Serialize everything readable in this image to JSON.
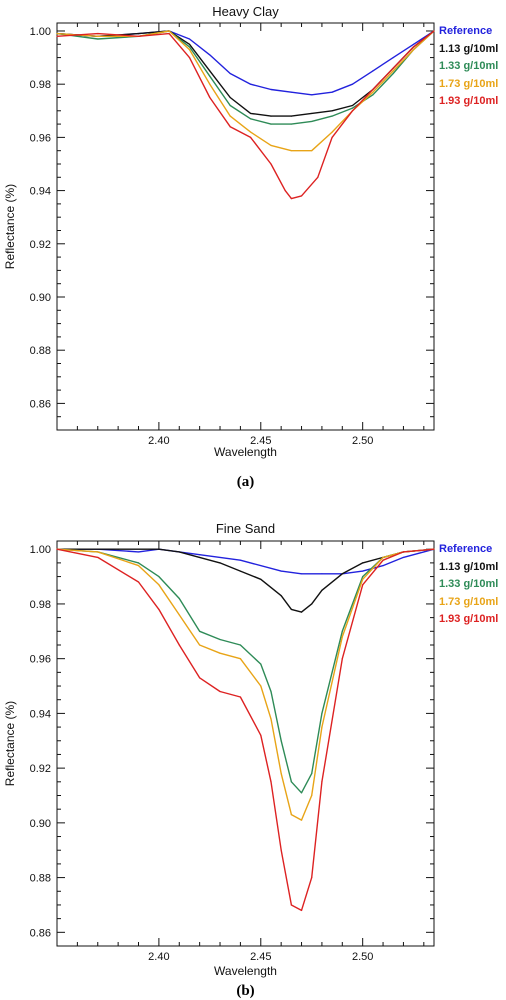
{
  "chart_data": [
    {
      "type": "line",
      "title": "Heavy Clay",
      "xlabel": "Wavelength",
      "ylabel": "Reflectance (%)",
      "caption": "(a)",
      "xlim": [
        2.35,
        2.535
      ],
      "ylim": [
        0.85,
        1.003
      ],
      "xticks": [
        "2.40",
        "2.45",
        "2.50"
      ],
      "yticks": [
        "0.86",
        "0.88",
        "0.90",
        "0.92",
        "0.94",
        "0.96",
        "0.98",
        "1.00"
      ],
      "legend_position": "right",
      "series": [
        {
          "name": "Reference",
          "color": "#2222dd",
          "x": [
            2.35,
            2.37,
            2.39,
            2.405,
            2.415,
            2.425,
            2.435,
            2.445,
            2.455,
            2.465,
            2.475,
            2.485,
            2.495,
            2.505,
            2.515,
            2.525,
            2.535
          ],
          "y": [
            0.999,
            0.998,
            0.999,
            1.0,
            0.997,
            0.991,
            0.984,
            0.98,
            0.978,
            0.977,
            0.976,
            0.977,
            0.98,
            0.985,
            0.99,
            0.995,
            1.0
          ]
        },
        {
          "name": "1.13 g/10ml",
          "color": "#111111",
          "x": [
            2.35,
            2.37,
            2.39,
            2.405,
            2.415,
            2.425,
            2.435,
            2.445,
            2.455,
            2.465,
            2.475,
            2.485,
            2.495,
            2.505,
            2.515,
            2.525,
            2.535
          ],
          "y": [
            0.999,
            0.998,
            0.999,
            1.0,
            0.995,
            0.985,
            0.975,
            0.969,
            0.968,
            0.968,
            0.969,
            0.97,
            0.972,
            0.978,
            0.986,
            0.994,
            1.0
          ]
        },
        {
          "name": "1.33 g/10ml",
          "color": "#2e8b57",
          "x": [
            2.35,
            2.37,
            2.39,
            2.405,
            2.415,
            2.425,
            2.435,
            2.445,
            2.455,
            2.465,
            2.475,
            2.485,
            2.495,
            2.505,
            2.515,
            2.525,
            2.535
          ],
          "y": [
            0.999,
            0.997,
            0.998,
            1.0,
            0.994,
            0.983,
            0.972,
            0.967,
            0.965,
            0.965,
            0.966,
            0.968,
            0.971,
            0.976,
            0.984,
            0.993,
            1.0
          ]
        },
        {
          "name": "1.73 g/10ml",
          "color": "#e8a417",
          "x": [
            2.35,
            2.37,
            2.39,
            2.405,
            2.415,
            2.425,
            2.435,
            2.445,
            2.455,
            2.465,
            2.475,
            2.485,
            2.495,
            2.505,
            2.515,
            2.525,
            2.535
          ],
          "y": [
            0.999,
            0.998,
            0.998,
            1.0,
            0.993,
            0.98,
            0.968,
            0.962,
            0.957,
            0.955,
            0.955,
            0.962,
            0.97,
            0.977,
            0.985,
            0.993,
            1.0
          ]
        },
        {
          "name": "1.93 g/10ml",
          "color": "#dd2222",
          "x": [
            2.35,
            2.37,
            2.39,
            2.405,
            2.415,
            2.425,
            2.435,
            2.445,
            2.455,
            2.462,
            2.465,
            2.47,
            2.478,
            2.485,
            2.495,
            2.505,
            2.515,
            2.525,
            2.535
          ],
          "y": [
            0.998,
            0.999,
            0.998,
            0.999,
            0.99,
            0.975,
            0.964,
            0.96,
            0.95,
            0.94,
            0.937,
            0.938,
            0.945,
            0.96,
            0.97,
            0.978,
            0.986,
            0.994,
            1.0
          ]
        }
      ]
    },
    {
      "type": "line",
      "title": "Fine Sand",
      "xlabel": "Wavelength",
      "ylabel": "Reflectance (%)",
      "caption": "(b)",
      "xlim": [
        2.35,
        2.535
      ],
      "ylim": [
        0.855,
        1.003
      ],
      "xticks": [
        "2.40",
        "2.45",
        "2.50"
      ],
      "yticks": [
        "0.86",
        "0.88",
        "0.90",
        "0.92",
        "0.94",
        "0.96",
        "0.98",
        "1.00"
      ],
      "legend_position": "right",
      "series": [
        {
          "name": "Reference",
          "color": "#2222dd",
          "x": [
            2.35,
            2.37,
            2.39,
            2.4,
            2.42,
            2.44,
            2.46,
            2.47,
            2.48,
            2.49,
            2.5,
            2.51,
            2.52,
            2.535
          ],
          "y": [
            1.0,
            1.0,
            0.999,
            1.0,
            0.998,
            0.996,
            0.992,
            0.991,
            0.991,
            0.991,
            0.992,
            0.994,
            0.997,
            1.0
          ]
        },
        {
          "name": "1.13 g/10ml",
          "color": "#111111",
          "x": [
            2.35,
            2.38,
            2.4,
            2.41,
            2.42,
            2.43,
            2.44,
            2.45,
            2.46,
            2.465,
            2.47,
            2.475,
            2.48,
            2.49,
            2.5,
            2.51,
            2.52,
            2.535
          ],
          "y": [
            1.0,
            1.0,
            1.0,
            0.999,
            0.997,
            0.995,
            0.992,
            0.989,
            0.983,
            0.978,
            0.977,
            0.98,
            0.985,
            0.991,
            0.995,
            0.997,
            0.999,
            1.0
          ]
        },
        {
          "name": "1.33 g/10ml",
          "color": "#2e8b57",
          "x": [
            2.35,
            2.37,
            2.39,
            2.4,
            2.41,
            2.42,
            2.43,
            2.44,
            2.45,
            2.455,
            2.46,
            2.465,
            2.47,
            2.475,
            2.48,
            2.49,
            2.5,
            2.51,
            2.52,
            2.535
          ],
          "y": [
            1.0,
            0.999,
            0.995,
            0.99,
            0.982,
            0.97,
            0.967,
            0.965,
            0.958,
            0.948,
            0.93,
            0.915,
            0.911,
            0.918,
            0.94,
            0.97,
            0.99,
            0.997,
            0.999,
            1.0
          ]
        },
        {
          "name": "1.73 g/10ml",
          "color": "#e8a417",
          "x": [
            2.35,
            2.37,
            2.39,
            2.4,
            2.41,
            2.42,
            2.43,
            2.44,
            2.45,
            2.455,
            2.46,
            2.465,
            2.47,
            2.475,
            2.48,
            2.49,
            2.5,
            2.51,
            2.52,
            2.535
          ],
          "y": [
            1.0,
            0.999,
            0.994,
            0.987,
            0.976,
            0.965,
            0.962,
            0.96,
            0.95,
            0.938,
            0.918,
            0.903,
            0.901,
            0.91,
            0.935,
            0.968,
            0.989,
            0.997,
            0.999,
            1.0
          ]
        },
        {
          "name": "1.93 g/10ml",
          "color": "#dd2222",
          "x": [
            2.35,
            2.37,
            2.39,
            2.4,
            2.41,
            2.42,
            2.43,
            2.44,
            2.45,
            2.455,
            2.46,
            2.465,
            2.47,
            2.475,
            2.48,
            2.49,
            2.5,
            2.51,
            2.52,
            2.535
          ],
          "y": [
            1.0,
            0.997,
            0.988,
            0.978,
            0.965,
            0.953,
            0.948,
            0.946,
            0.932,
            0.915,
            0.89,
            0.87,
            0.868,
            0.88,
            0.915,
            0.96,
            0.987,
            0.996,
            0.999,
            1.0
          ]
        }
      ]
    }
  ]
}
